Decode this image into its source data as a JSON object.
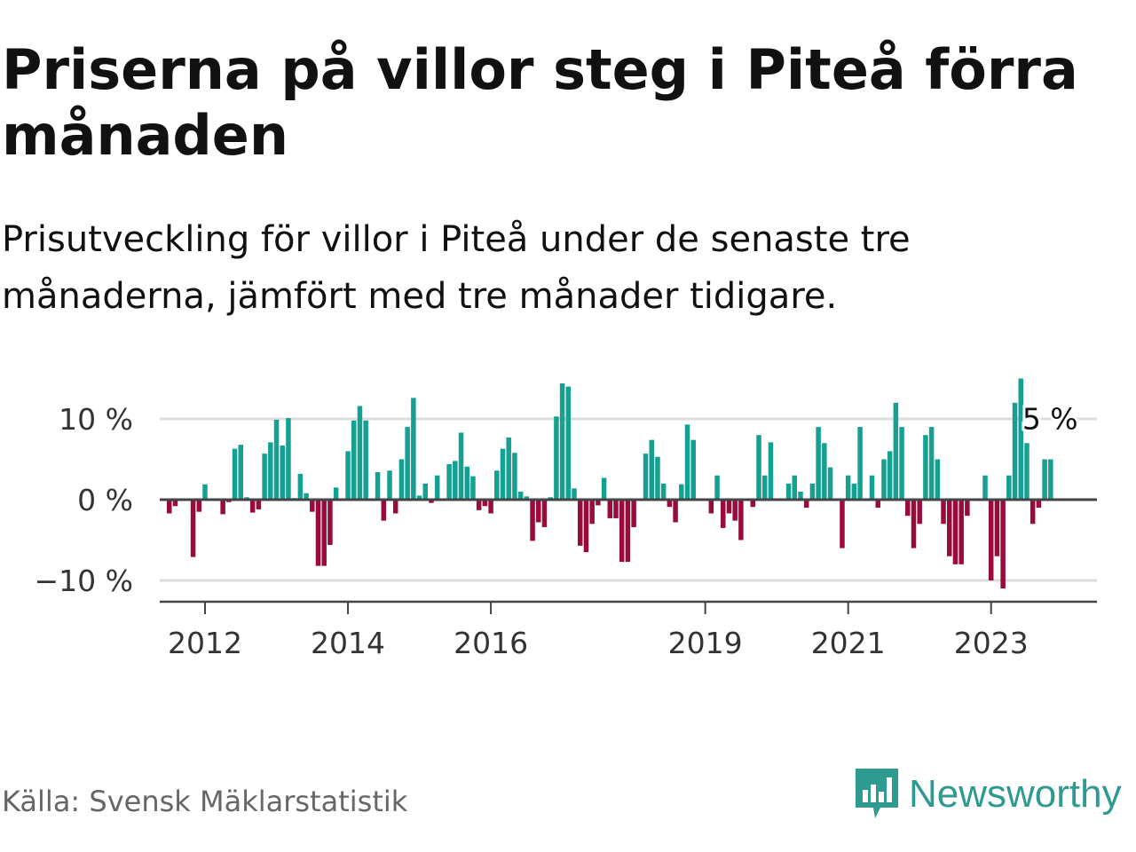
{
  "title": "Priserna på villor steg i Piteå förra månaden",
  "subtitle": "Prisutveckling för villor i Piteå under de senaste tre månaderna, jämfört med tre månader tidigare.",
  "source": "Källa: Svensk Mäklarstatistik",
  "brand": "Newsworthy",
  "colors": {
    "positive": "#15a092",
    "negative": "#990a3d",
    "grid": "#dddddd",
    "axis": "#444444",
    "brand": "#2f9a8f"
  },
  "chart_data": {
    "type": "bar",
    "title": "",
    "xlabel": "",
    "ylabel": "",
    "ylim": [
      -12,
      16
    ],
    "y_ticks": [
      {
        "value": 10,
        "label": "10 %"
      },
      {
        "value": 0,
        "label": "0 %"
      },
      {
        "value": -10,
        "label": "−10 %"
      }
    ],
    "x_ticks": [
      {
        "year": 2012,
        "label": "2012"
      },
      {
        "year": 2014,
        "label": "2014"
      },
      {
        "year": 2016,
        "label": "2016"
      },
      {
        "year": 2019,
        "label": "2019"
      },
      {
        "year": 2021,
        "label": "2021"
      },
      {
        "year": 2023,
        "label": "2023"
      }
    ],
    "start": "2011-07",
    "end_label": {
      "text": "5 %",
      "value": 5
    },
    "values": [
      -1.7,
      -0.8,
      0,
      0,
      -7.1,
      -1.5,
      1.9,
      0,
      0,
      -1.8,
      -0.3,
      6.3,
      6.8,
      0.3,
      -1.6,
      -1.2,
      5.7,
      7.1,
      9.9,
      6.7,
      10.1,
      0.2,
      3.2,
      0.8,
      -1.5,
      -8.2,
      -8.2,
      -5.6,
      1.5,
      0,
      6.0,
      9.8,
      11.6,
      9.8,
      0,
      3.4,
      -2.6,
      3.6,
      -1.7,
      5.0,
      9.0,
      12.6,
      0.5,
      2.0,
      -0.4,
      3.0,
      0,
      4.4,
      4.8,
      8.3,
      4.1,
      2.9,
      -1.3,
      -0.8,
      -1.7,
      3.6,
      6.3,
      7.7,
      5.8,
      1.0,
      0.4,
      -5.1,
      -2.8,
      -3.4,
      0.3,
      10.3,
      14.4,
      14.0,
      1.4,
      -5.7,
      -6.5,
      -3.0,
      -0.7,
      2.7,
      -2.3,
      -2.3,
      -7.7,
      -7.7,
      -3.4,
      0,
      5.7,
      7.4,
      5.3,
      2.0,
      -0.9,
      -2.8,
      1.9,
      9.3,
      7.4,
      0,
      0,
      -1.7,
      3.0,
      -3.5,
      -1.7,
      -2.6,
      -5.0,
      0,
      -0.9,
      8.0,
      3.0,
      7.1,
      0,
      0,
      2.0,
      3.0,
      1.0,
      -1.0,
      2.0,
      9.0,
      7.0,
      4.0,
      0,
      -6.0,
      3.0,
      2.0,
      9.0,
      0,
      3.0,
      -1.0,
      5.0,
      6.0,
      12.0,
      9.0,
      -2.0,
      -6.0,
      -3.0,
      8.0,
      9.0,
      5.0,
      -3.0,
      -7.0,
      -8.0,
      -8.0,
      -2.0,
      0,
      0,
      3.0,
      -10.0,
      -7.0,
      -11.0,
      3.0,
      12.0,
      15.0,
      7.0,
      -3.0,
      -1.0,
      5.0,
      5.0
    ]
  }
}
